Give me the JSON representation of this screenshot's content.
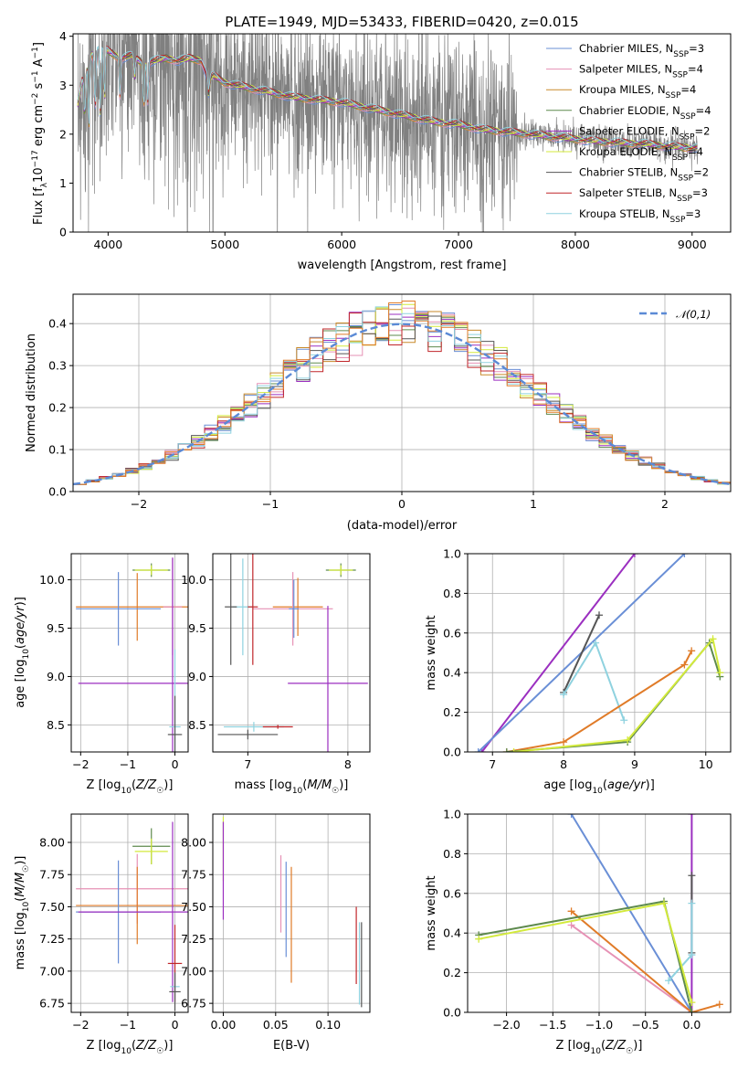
{
  "figure_title": "PLATE=1949, MJD=53433, FIBERID=0420, z=0.015",
  "colors": {
    "Chabrier MILES": "#6a8fd6",
    "Salpeter MILES": "#e691b5",
    "Kroupa MILES": "#c98a2a",
    "Chabrier ELODIE": "#5e8a4e",
    "Salpeter ELODIE": "#9b2fc0",
    "Kroupa ELODIE": "#d3ea3c",
    "Chabrier STELIB": "#555555",
    "Salpeter STELIB": "#c0262a",
    "Kroupa STELIB": "#8fd2df",
    "data": "#808080",
    "gaussian": "#5b8ad6",
    "orange": "#e07b28"
  },
  "chart_data": [
    {
      "id": "spectrum",
      "type": "line",
      "title": "PLATE=1949, MJD=53433, FIBERID=0420, z=0.015",
      "xlabel": "wavelength [Angstrom, rest frame]",
      "ylabel": "Flux [f_λ 10^-17 erg cm^-2 s^-1 A^-1]",
      "xlim": [
        3700,
        9330
      ],
      "ylim": [
        0,
        4.05
      ],
      "xticks": [
        4000,
        5000,
        6000,
        7000,
        8000,
        9000
      ],
      "yticks": [
        0,
        1,
        2,
        3,
        4
      ],
      "grid": false,
      "legend_position": "right",
      "legend": [
        "Chabrier MILES, N_SSP=3",
        "Salpeter MILES, N_SSP=4",
        "Kroupa MILES, N_SSP=4",
        "Chabrier ELODIE, N_SSP=4",
        "Salpeter ELODIE, N_SSP=2",
        "Kroupa ELODIE, N_SSP=4",
        "Chabrier STELIB, N_SSP=2",
        "Salpeter STELIB, N_SSP=3",
        "Kroupa STELIB, N_SSP=3"
      ],
      "data_range": [
        3740,
        9050
      ],
      "continuum": {
        "x": [
          3740,
          3780,
          3850,
          3900,
          3950,
          4000,
          4100,
          4200,
          4300,
          4400,
          4500,
          4600,
          4700,
          4800,
          4860,
          4900,
          5000,
          5200,
          5400,
          5600,
          5800,
          6000,
          6200,
          6400,
          6600,
          6800,
          7000,
          7200,
          7400,
          7600,
          7800,
          8000,
          8200,
          8400,
          8600,
          8800,
          9000
        ],
        "y": [
          2.6,
          3.1,
          3.6,
          3.7,
          3.8,
          3.7,
          3.55,
          3.6,
          3.45,
          3.5,
          3.55,
          3.5,
          3.55,
          3.5,
          3.1,
          3.2,
          3.05,
          2.95,
          2.85,
          2.75,
          2.7,
          2.65,
          2.55,
          2.45,
          2.35,
          2.25,
          2.2,
          2.1,
          2.05,
          2.0,
          1.95,
          1.9,
          1.85,
          1.82,
          1.8,
          1.75,
          1.72
        ]
      },
      "absorption_dips": [
        {
          "x": 3800,
          "depth": 0.9
        },
        {
          "x": 3835,
          "depth": 1.3
        },
        {
          "x": 3889,
          "depth": 1.2
        },
        {
          "x": 3934,
          "depth": 1.4
        },
        {
          "x": 3969,
          "depth": 1.1
        },
        {
          "x": 4102,
          "depth": 0.8
        },
        {
          "x": 4227,
          "depth": 0.4
        },
        {
          "x": 4305,
          "depth": 0.9
        },
        {
          "x": 4340,
          "depth": 0.8
        },
        {
          "x": 4862,
          "depth": 0.3
        }
      ]
    },
    {
      "id": "residuals",
      "type": "line",
      "xlabel": "(data-model)/error",
      "ylabel": "Normed distribution",
      "xlim": [
        -2.5,
        2.5
      ],
      "ylim": [
        0,
        0.47
      ],
      "xticks": [
        -2,
        -1,
        0,
        1,
        2
      ],
      "yticks": [
        0.0,
        0.1,
        0.2,
        0.3,
        0.4
      ],
      "grid": true,
      "legend_position": "top-right",
      "gaussian_label": "𝒩(0,1)"
    },
    {
      "id": "age_vs_Z",
      "type": "scatter",
      "xlabel": "Z [log10(Z/Z☉)]",
      "ylabel": "age  [log10(age/yr)]",
      "xlim": [
        -2.2,
        0.28
      ],
      "ylim": [
        8.22,
        10.27
      ],
      "xticks": [
        -2,
        -1,
        0
      ],
      "yticks": [
        8.5,
        9.0,
        9.5,
        10.0
      ],
      "grid": true,
      "points": [
        {
          "x": -0.5,
          "y": 10.1,
          "xerr": 0.4,
          "yerr": 0.07,
          "color": "Chabrier ELODIE"
        },
        {
          "x": -0.5,
          "y": 10.1,
          "xerr": 0.35,
          "yerr": 0.05,
          "color": "Kroupa ELODIE"
        },
        {
          "x": -0.8,
          "y": 9.72,
          "xerr": 1.3,
          "yerr": 0.35,
          "color": "orange"
        },
        {
          "x": -1.2,
          "y": 9.7,
          "xerr": 0.9,
          "yerr": 0.38,
          "color": "Chabrier MILES"
        },
        {
          "x": -0.05,
          "y": 9.72,
          "xerr": 0.2,
          "yerr": 0.5,
          "color": "Salpeter MILES"
        },
        {
          "x": -0.05,
          "y": 8.93,
          "xerr": 2.0,
          "yerr": 1.3,
          "color": "Salpeter ELODIE"
        },
        {
          "x": 0.0,
          "y": 8.48,
          "xerr": 0.12,
          "yerr": 0.8,
          "color": "Kroupa STELIB"
        },
        {
          "x": 0.0,
          "y": 8.4,
          "xerr": 0.15,
          "yerr": 0.4,
          "color": "Chabrier STELIB"
        }
      ]
    },
    {
      "id": "age_vs_mass",
      "type": "scatter",
      "xlabel": "mass [log10(M/M☉)]",
      "ylabel": "",
      "xlim": [
        6.65,
        8.22
      ],
      "ylim": [
        8.22,
        10.27
      ],
      "xticks": [
        7,
        8
      ],
      "yticks": [
        8.5,
        9.0,
        9.5,
        10.0
      ],
      "grid": true,
      "points": [
        {
          "x": 7.93,
          "y": 10.1,
          "xerr": 0.15,
          "yerr": 0.07,
          "color": "Chabrier ELODIE"
        },
        {
          "x": 7.93,
          "y": 10.1,
          "xerr": 0.12,
          "yerr": 0.05,
          "color": "Kroupa ELODIE"
        },
        {
          "x": 7.5,
          "y": 9.72,
          "xerr": 0.25,
          "yerr": 0.3,
          "color": "orange"
        },
        {
          "x": 7.45,
          "y": 9.7,
          "xerr": 0.4,
          "yerr": 0.38,
          "color": "Salpeter MILES"
        },
        {
          "x": 6.95,
          "y": 9.72,
          "xerr": 0.1,
          "yerr": 0.5,
          "color": "Kroupa STELIB"
        },
        {
          "x": 6.83,
          "y": 9.72,
          "xerr": 0.06,
          "yerr": 0.6,
          "color": "Chabrier STELIB"
        },
        {
          "x": 7.05,
          "y": 9.72,
          "xerr": 0.05,
          "yerr": 0.6,
          "color": "Salpeter STELIB"
        },
        {
          "x": 7.46,
          "y": 9.7,
          "xerr": 0.05,
          "yerr": 0.3,
          "color": "Chabrier MILES"
        },
        {
          "x": 7.8,
          "y": 8.93,
          "xerr": 0.4,
          "yerr": 0.8,
          "color": "Salpeter ELODIE"
        },
        {
          "x": 7.06,
          "y": 8.48,
          "xerr": 0.3,
          "yerr": 0.05,
          "color": "Kroupa STELIB"
        },
        {
          "x": 7.0,
          "y": 8.4,
          "xerr": 0.3,
          "yerr": 0.05,
          "color": "Chabrier STELIB"
        },
        {
          "x": 7.3,
          "y": 8.48,
          "xerr": 0.15,
          "yerr": 0.02,
          "color": "Salpeter STELIB"
        }
      ]
    },
    {
      "id": "weight_vs_age",
      "type": "line",
      "xlabel": "age  [log10(age/yr)]",
      "ylabel": "mass weight",
      "xlim": [
        6.65,
        10.35
      ],
      "ylim": [
        0,
        1.0
      ],
      "xticks": [
        7,
        8,
        9,
        10
      ],
      "yticks": [
        0.0,
        0.2,
        0.4,
        0.6,
        0.8,
        1.0
      ],
      "grid": true,
      "series": [
        {
          "color": "Salpeter ELODIE",
          "x": [
            6.85,
            9.0
          ],
          "y": [
            0.0,
            1.0
          ]
        },
        {
          "color": "Chabrier MILES",
          "x": [
            6.8,
            9.7
          ],
          "y": [
            0.0,
            1.0
          ]
        },
        {
          "color": "Chabrier STELIB",
          "x": [
            8.0,
            8.5
          ],
          "y": [
            0.3,
            0.69
          ]
        },
        {
          "color": "Kroupa STELIB",
          "x": [
            8.0,
            8.45,
            8.85
          ],
          "y": [
            0.29,
            0.55,
            0.16
          ]
        },
        {
          "color": "orange",
          "x": [
            7.2,
            8.0,
            9.7,
            9.8
          ],
          "y": [
            0.0,
            0.05,
            0.44,
            0.51
          ]
        },
        {
          "color": "Chabrier ELODIE",
          "x": [
            7.2,
            8.9,
            10.05,
            10.2
          ],
          "y": [
            0.0,
            0.05,
            0.55,
            0.38
          ]
        },
        {
          "color": "Kroupa ELODIE",
          "x": [
            7.3,
            8.9,
            10.1,
            10.2
          ],
          "y": [
            0.0,
            0.06,
            0.57,
            0.4
          ]
        }
      ]
    },
    {
      "id": "mass_vs_Z",
      "type": "scatter",
      "xlabel": "Z [log10(Z/Z☉)]",
      "ylabel": "mass [log10(M/M☉)]",
      "xlim": [
        -2.2,
        0.28
      ],
      "ylim": [
        6.68,
        8.22
      ],
      "xticks": [
        -2,
        -1,
        0
      ],
      "yticks": [
        6.75,
        7.0,
        7.25,
        7.5,
        7.75,
        8.0
      ],
      "grid": true,
      "points": [
        {
          "x": -0.5,
          "y": 7.97,
          "xerr": 0.4,
          "yerr": 0.14,
          "color": "Chabrier ELODIE"
        },
        {
          "x": -0.5,
          "y": 7.93,
          "xerr": 0.35,
          "yerr": 0.1,
          "color": "Kroupa ELODIE"
        },
        {
          "x": -0.8,
          "y": 7.64,
          "xerr": 1.3,
          "yerr": 0.27,
          "color": "Salpeter MILES"
        },
        {
          "x": -0.8,
          "y": 7.51,
          "xerr": 1.3,
          "yerr": 0.3,
          "color": "orange"
        },
        {
          "x": -1.2,
          "y": 7.46,
          "xerr": 0.9,
          "yerr": 0.4,
          "color": "Chabrier MILES"
        },
        {
          "x": -0.05,
          "y": 7.46,
          "xerr": 2.0,
          "yerr": 0.7,
          "color": "Salpeter ELODIE"
        },
        {
          "x": 0.0,
          "y": 7.06,
          "xerr": 0.15,
          "yerr": 0.3,
          "color": "Salpeter STELIB"
        },
        {
          "x": 0.0,
          "y": 6.88,
          "xerr": 0.1,
          "yerr": 0.1,
          "color": "Kroupa STELIB"
        },
        {
          "x": 0.0,
          "y": 6.84,
          "xerr": 0.12,
          "yerr": 0.15,
          "color": "Chabrier STELIB"
        }
      ]
    },
    {
      "id": "mass_vs_EBV",
      "type": "scatter",
      "xlabel": "E(B-V)",
      "ylabel": "",
      "xlim": [
        -0.01,
        0.14
      ],
      "ylim": [
        6.68,
        8.22
      ],
      "xticks": [
        0.0,
        0.05,
        0.1
      ],
      "yticks": [
        6.75,
        7.0,
        7.25,
        7.5,
        7.75,
        8.0
      ],
      "grid": true,
      "points": [
        {
          "x": 0.0,
          "y": 7.95,
          "yerr": 0.25,
          "color": "Kroupa ELODIE"
        },
        {
          "x": 0.0,
          "y": 7.78,
          "yerr": 0.38,
          "color": "Salpeter ELODIE"
        },
        {
          "x": 0.055,
          "y": 7.6,
          "yerr": 0.3,
          "color": "Salpeter MILES"
        },
        {
          "x": 0.06,
          "y": 7.48,
          "yerr": 0.37,
          "color": "Chabrier MILES"
        },
        {
          "x": 0.065,
          "y": 7.36,
          "yerr": 0.45,
          "color": "orange"
        },
        {
          "x": 0.127,
          "y": 7.2,
          "yerr": 0.3,
          "color": "Salpeter STELIB"
        },
        {
          "x": 0.13,
          "y": 7.06,
          "yerr": 0.32,
          "color": "Kroupa STELIB"
        },
        {
          "x": 0.132,
          "y": 7.05,
          "yerr": 0.33,
          "color": "Chabrier STELIB"
        }
      ]
    },
    {
      "id": "weight_vs_Z",
      "type": "line",
      "xlabel": "Z [log10(Z/Z☉)]",
      "ylabel": "mass weight",
      "xlim": [
        -2.42,
        0.42
      ],
      "ylim": [
        0,
        1.0
      ],
      "xticks": [
        -2.0,
        -1.5,
        -1.0,
        -0.5,
        0.0
      ],
      "yticks": [
        0.0,
        0.2,
        0.4,
        0.6,
        0.8,
        1.0
      ],
      "grid": true,
      "series": [
        {
          "color": "Chabrier MILES",
          "x": [
            -1.3,
            0.0
          ],
          "y": [
            1.0,
            0.0
          ]
        },
        {
          "color": "Salpeter ELODIE",
          "x": [
            0.0,
            0.0
          ],
          "y": [
            0.0,
            1.0
          ]
        },
        {
          "color": "Chabrier STELIB",
          "x": [
            0.0,
            0.0
          ],
          "y": [
            0.3,
            0.69
          ]
        },
        {
          "color": "Kroupa STELIB",
          "x": [
            -0.25,
            0.0,
            0.0
          ],
          "y": [
            0.16,
            0.29,
            0.55
          ]
        },
        {
          "color": "Salpeter MILES",
          "x": [
            -1.3,
            0.0
          ],
          "y": [
            0.44,
            0.0
          ]
        },
        {
          "color": "orange",
          "x": [
            -1.3,
            0.0,
            0.3
          ],
          "y": [
            0.51,
            0.0,
            0.04
          ]
        },
        {
          "color": "Chabrier ELODIE",
          "x": [
            -2.3,
            -0.3,
            0.0
          ],
          "y": [
            0.39,
            0.56,
            0.0
          ]
        },
        {
          "color": "Kroupa ELODIE",
          "x": [
            -2.3,
            -0.3,
            0.0
          ],
          "y": [
            0.37,
            0.55,
            0.05
          ]
        }
      ]
    }
  ]
}
